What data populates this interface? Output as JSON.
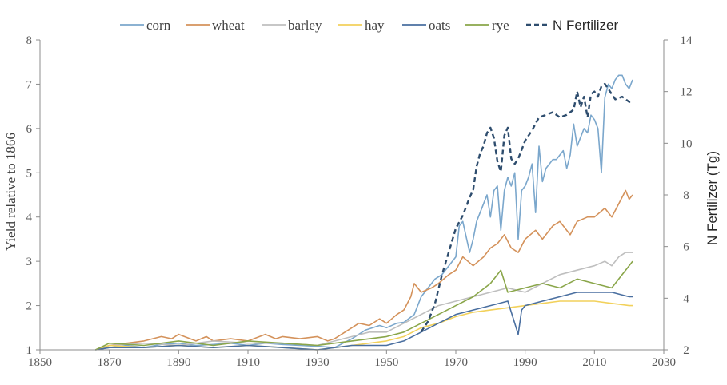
{
  "chart_data": {
    "type": "line",
    "title": "",
    "xlabel": "",
    "ylabel": "Yield relative to 1866",
    "y2label": "N Fertilizer (Tg)",
    "xlim": [
      1850,
      2030
    ],
    "ylim": [
      1,
      8
    ],
    "y2lim": [
      2,
      14
    ],
    "xticks": [
      1850,
      1870,
      1890,
      1910,
      1930,
      1950,
      1970,
      1990,
      2010,
      2030
    ],
    "yticks": [
      1,
      2,
      3,
      4,
      5,
      6,
      7,
      8
    ],
    "y2ticks": [
      2,
      4,
      6,
      8,
      10,
      12,
      14
    ],
    "legend_position": "top",
    "series": [
      {
        "name": "corn",
        "color": "#7ba7cc",
        "axis": "left",
        "x": [
          1866,
          1870,
          1875,
          1880,
          1885,
          1890,
          1895,
          1900,
          1905,
          1910,
          1915,
          1920,
          1925,
          1930,
          1935,
          1940,
          1944,
          1948,
          1950,
          1953,
          1955,
          1958,
          1960,
          1962,
          1964,
          1966,
          1968,
          1970,
          1971,
          1972,
          1974,
          1975,
          1976,
          1978,
          1979,
          1980,
          1981,
          1982,
          1983,
          1984,
          1985,
          1986,
          1987,
          1988,
          1989,
          1990,
          1991,
          1992,
          1993,
          1994,
          1995,
          1996,
          1997,
          1998,
          1999,
          2000,
          2001,
          2002,
          2003,
          2004,
          2005,
          2006,
          2007,
          2008,
          2009,
          2010,
          2011,
          2012,
          2013,
          2014,
          2015,
          2016,
          2017,
          2018,
          2019,
          2020,
          2021
        ],
        "values": [
          1.0,
          1.05,
          1.1,
          1.05,
          1.12,
          1.15,
          1.1,
          1.12,
          1.15,
          1.1,
          1.15,
          1.12,
          1.1,
          1.08,
          1.05,
          1.25,
          1.45,
          1.55,
          1.5,
          1.6,
          1.62,
          1.8,
          2.2,
          2.4,
          2.6,
          2.7,
          2.9,
          3.1,
          3.8,
          3.9,
          3.2,
          3.5,
          3.9,
          4.3,
          4.5,
          4.0,
          4.6,
          4.7,
          3.7,
          4.6,
          4.9,
          4.7,
          5.0,
          3.5,
          4.6,
          4.7,
          4.9,
          5.2,
          4.1,
          5.6,
          4.8,
          5.1,
          5.2,
          5.3,
          5.3,
          5.4,
          5.5,
          5.1,
          5.4,
          6.1,
          5.6,
          5.8,
          6.0,
          5.9,
          6.3,
          6.2,
          6.0,
          5.0,
          6.7,
          7.0,
          6.9,
          7.1,
          7.2,
          7.2,
          7.0,
          6.9,
          7.1
        ]
      },
      {
        "name": "wheat",
        "color": "#d4925b",
        "axis": "left",
        "x": [
          1866,
          1870,
          1875,
          1880,
          1885,
          1888,
          1890,
          1895,
          1898,
          1900,
          1905,
          1910,
          1915,
          1918,
          1920,
          1925,
          1930,
          1933,
          1935,
          1940,
          1942,
          1945,
          1948,
          1950,
          1953,
          1955,
          1957,
          1958,
          1960,
          1963,
          1965,
          1968,
          1970,
          1972,
          1975,
          1978,
          1980,
          1982,
          1984,
          1986,
          1988,
          1990,
          1993,
          1995,
          1998,
          2000,
          2003,
          2005,
          2008,
          2010,
          2013,
          2015,
          2017,
          2019,
          2020,
          2021
        ],
        "values": [
          1.0,
          1.1,
          1.15,
          1.2,
          1.3,
          1.25,
          1.35,
          1.2,
          1.3,
          1.2,
          1.25,
          1.2,
          1.35,
          1.25,
          1.3,
          1.25,
          1.3,
          1.2,
          1.25,
          1.5,
          1.6,
          1.55,
          1.7,
          1.6,
          1.8,
          1.9,
          2.2,
          2.5,
          2.3,
          2.4,
          2.5,
          2.7,
          2.8,
          3.1,
          2.9,
          3.1,
          3.3,
          3.4,
          3.6,
          3.3,
          3.2,
          3.5,
          3.7,
          3.5,
          3.8,
          3.9,
          3.6,
          3.9,
          4.0,
          4.0,
          4.2,
          4.0,
          4.3,
          4.6,
          4.4,
          4.5
        ]
      },
      {
        "name": "barley",
        "color": "#bfbfbf",
        "axis": "left",
        "x": [
          1866,
          1870,
          1880,
          1890,
          1900,
          1910,
          1920,
          1930,
          1940,
          1945,
          1950,
          1955,
          1960,
          1965,
          1970,
          1975,
          1980,
          1985,
          1990,
          1995,
          2000,
          2005,
          2010,
          2013,
          2015,
          2017,
          2019,
          2021
        ],
        "values": [
          1.0,
          1.1,
          1.15,
          1.1,
          1.2,
          1.15,
          1.15,
          1.1,
          1.3,
          1.4,
          1.4,
          1.6,
          1.8,
          2.0,
          2.1,
          2.2,
          2.3,
          2.4,
          2.3,
          2.5,
          2.7,
          2.8,
          2.9,
          3.0,
          2.9,
          3.1,
          3.2,
          3.2
        ]
      },
      {
        "name": "hay",
        "color": "#f2d15b",
        "axis": "left",
        "x": [
          1866,
          1870,
          1880,
          1890,
          1900,
          1910,
          1920,
          1930,
          1940,
          1950,
          1955,
          1960,
          1965,
          1970,
          1975,
          1980,
          1985,
          1990,
          1995,
          2000,
          2005,
          2010,
          2015,
          2020,
          2021
        ],
        "values": [
          1.0,
          1.1,
          1.05,
          1.1,
          1.05,
          1.1,
          1.05,
          1.0,
          1.1,
          1.2,
          1.3,
          1.5,
          1.6,
          1.75,
          1.85,
          1.9,
          1.95,
          2.0,
          2.05,
          2.1,
          2.1,
          2.1,
          2.05,
          2.0,
          2.0
        ]
      },
      {
        "name": "oats",
        "color": "#4a6fa0",
        "axis": "left",
        "x": [
          1866,
          1870,
          1880,
          1890,
          1900,
          1910,
          1920,
          1930,
          1940,
          1950,
          1955,
          1960,
          1965,
          1970,
          1975,
          1980,
          1985,
          1987,
          1988,
          1989,
          1990,
          1995,
          2000,
          2005,
          2010,
          2015,
          2020,
          2021
        ],
        "values": [
          1.0,
          1.05,
          1.05,
          1.1,
          1.05,
          1.1,
          1.05,
          1.0,
          1.1,
          1.1,
          1.2,
          1.4,
          1.6,
          1.8,
          1.9,
          2.0,
          2.1,
          1.6,
          1.35,
          1.9,
          2.0,
          2.1,
          2.2,
          2.3,
          2.3,
          2.3,
          2.2,
          2.2
        ]
      },
      {
        "name": "rye",
        "color": "#8aa64a",
        "axis": "left",
        "x": [
          1866,
          1870,
          1880,
          1890,
          1900,
          1910,
          1920,
          1930,
          1940,
          1950,
          1955,
          1960,
          1965,
          1970,
          1975,
          1980,
          1983,
          1985,
          1990,
          1995,
          2000,
          2005,
          2010,
          2015,
          2018,
          2020,
          2021
        ],
        "values": [
          1.0,
          1.15,
          1.1,
          1.2,
          1.1,
          1.2,
          1.15,
          1.1,
          1.2,
          1.3,
          1.4,
          1.6,
          1.8,
          2.0,
          2.2,
          2.5,
          2.8,
          2.3,
          2.4,
          2.5,
          2.4,
          2.6,
          2.5,
          2.4,
          2.7,
          2.9,
          3.0
        ]
      },
      {
        "name": "N Fertilizer",
        "color": "#2e4d6e",
        "axis": "right",
        "dashed": true,
        "x": [
          1960,
          1962,
          1964,
          1966,
          1968,
          1970,
          1972,
          1974,
          1975,
          1976,
          1977,
          1978,
          1979,
          1980,
          1981,
          1982,
          1983,
          1984,
          1985,
          1986,
          1987,
          1988,
          1990,
          1992,
          1994,
          1996,
          1998,
          2000,
          2002,
          2004,
          2005,
          2006,
          2007,
          2008,
          2009,
          2010,
          2011,
          2012,
          2013,
          2014,
          2016,
          2018,
          2020,
          2021
        ],
        "values": [
          2.7,
          3.1,
          3.8,
          4.9,
          5.8,
          6.7,
          7.2,
          7.9,
          8.2,
          9.1,
          9.6,
          9.9,
          10.4,
          10.6,
          10.2,
          9.3,
          8.9,
          10.3,
          10.6,
          9.4,
          9.2,
          9.4,
          10.1,
          10.5,
          11.0,
          11.1,
          11.2,
          11.0,
          11.1,
          11.3,
          12.0,
          11.4,
          11.8,
          11.0,
          11.9,
          12.0,
          11.8,
          12.2,
          12.3,
          12.1,
          11.7,
          11.8,
          11.6,
          11.6
        ]
      }
    ]
  }
}
